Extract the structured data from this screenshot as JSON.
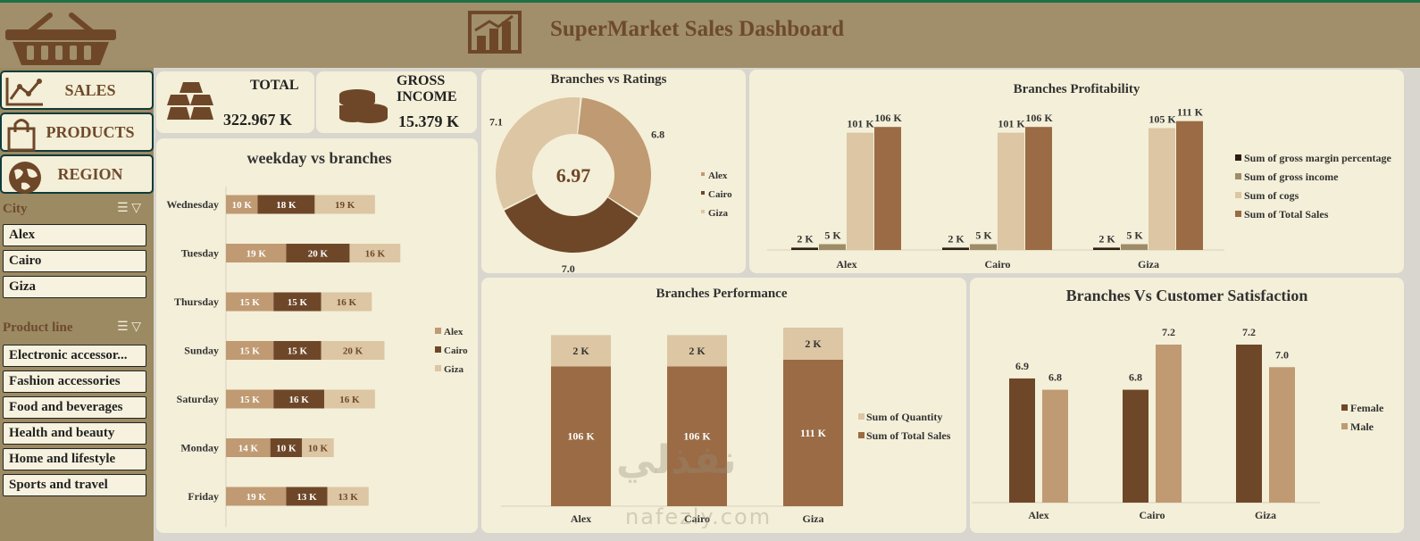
{
  "header": {
    "title": "SuperMarket Sales Dashboard"
  },
  "nav": [
    {
      "label": "SALES",
      "icon": "line-chart-icon"
    },
    {
      "label": "PRODUCTS",
      "icon": "shopping-bag-icon"
    },
    {
      "label": "REGION",
      "icon": "globe-icon"
    }
  ],
  "city_slicer": {
    "title": "City",
    "items": [
      "Alex",
      "Cairo",
      "Giza"
    ]
  },
  "product_slicer": {
    "title": "Product line",
    "items": [
      "Electronic accessor...",
      "Fashion accessories",
      "Food and beverages",
      "Health and beauty",
      "Home and lifestyle",
      "Sports and travel"
    ]
  },
  "kpi": {
    "total": {
      "label": "TOTAL",
      "value": "322.967 K"
    },
    "gross": {
      "label1": "GROSS",
      "label2": "INCOME",
      "value": "15.379 K"
    }
  },
  "colors": {
    "alex": "#bf9a72",
    "cairo": "#6e4729",
    "giza": "#dcc6a3",
    "card": "#f4efd8"
  },
  "chart_data": [
    {
      "id": "weekday",
      "type": "bar",
      "title": "weekday vs branches",
      "stacked": true,
      "orientation": "horizontal",
      "categories": [
        "Wednesday",
        "Tuesday",
        "Thursday",
        "Sunday",
        "Saturday",
        "Monday",
        "Friday"
      ],
      "series": [
        {
          "name": "Alex",
          "values": [
            10,
            19,
            15,
            15,
            15,
            14,
            19
          ],
          "labels": [
            "10 K",
            "19 K",
            "15 K",
            "15 K",
            "15 K",
            "14 K",
            "19 K"
          ]
        },
        {
          "name": "Cairo",
          "values": [
            18,
            20,
            15,
            15,
            16,
            10,
            13
          ],
          "labels": [
            "18 K",
            "20 K",
            "15 K",
            "15 K",
            "16 K",
            "10 K",
            "13 K"
          ]
        },
        {
          "name": "Giza",
          "values": [
            19,
            16,
            16,
            20,
            16,
            10,
            13
          ],
          "labels": [
            "19 K",
            "16 K",
            "16 K",
            "20 K",
            "16 K",
            "10 K",
            "13 K"
          ]
        }
      ],
      "legend": "right"
    },
    {
      "id": "ratings",
      "type": "pie",
      "title": "Branches vs Ratings",
      "center_label": "6.97",
      "categories": [
        "Alex",
        "Cairo",
        "Giza"
      ],
      "values": [
        6.8,
        7.0,
        7.1
      ],
      "labels": [
        "6.8",
        "7.0",
        "7.1"
      ],
      "legend": "right"
    },
    {
      "id": "profit",
      "type": "bar",
      "title": "Branches Profitability",
      "categories": [
        "Alex",
        "Cairo",
        "Giza"
      ],
      "series": [
        {
          "name": "Sum of gross margin percentage",
          "values": [
            2,
            2,
            2
          ],
          "labels": [
            "2 K",
            "2 K",
            "2 K"
          ]
        },
        {
          "name": "Sum of gross income",
          "values": [
            5,
            5,
            5
          ],
          "labels": [
            "5 K",
            "5 K",
            "5 K"
          ]
        },
        {
          "name": "Sum of cogs",
          "values": [
            101,
            101,
            105
          ],
          "labels": [
            "101 K",
            "101 K",
            "105 K"
          ]
        },
        {
          "name": "Sum of Total Sales",
          "values": [
            106,
            106,
            111
          ],
          "labels": [
            "106 K",
            "106 K",
            "111 K"
          ]
        }
      ],
      "legend": "right"
    },
    {
      "id": "perf",
      "type": "bar",
      "title": "Branches Performance",
      "stacked": true,
      "categories": [
        "Alex",
        "Cairo",
        "Giza"
      ],
      "series": [
        {
          "name": "Sum of Quantity",
          "values": [
            2,
            2,
            2
          ],
          "labels": [
            "2 K",
            "2 K",
            "2 K"
          ]
        },
        {
          "name": "Sum of Total Sales",
          "values": [
            106,
            106,
            111
          ],
          "labels": [
            "106 K",
            "106 K",
            "111 K"
          ]
        }
      ],
      "legend": "right"
    },
    {
      "id": "satis",
      "type": "bar",
      "title": "Branches Vs Customer Satisfaction",
      "categories": [
        "Alex",
        "Cairo",
        "Giza"
      ],
      "series": [
        {
          "name": "Female",
          "values": [
            6.9,
            6.8,
            7.2
          ],
          "labels": [
            "6.9",
            "6.8",
            "7.2"
          ]
        },
        {
          "name": "Male",
          "values": [
            6.8,
            7.2,
            7.0
          ],
          "labels": [
            "6.8",
            "7.2",
            "7.0"
          ]
        }
      ],
      "legend": "right"
    }
  ]
}
